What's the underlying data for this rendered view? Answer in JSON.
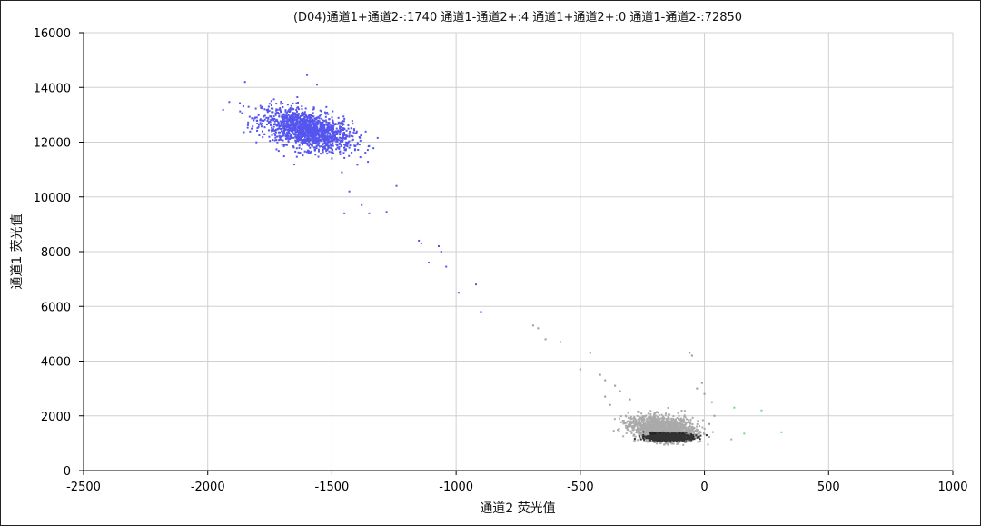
{
  "chart_data": {
    "type": "scatter",
    "title": "(D04)通道1+通道2-:1740   通道1-通道2+:4   通道1+通道2+:0   通道1-通道2-:72850",
    "xlabel": "通道2 荧光值",
    "ylabel": "通道1 荧光值",
    "xlim": [
      -2500,
      1000
    ],
    "ylim": [
      0,
      16000
    ],
    "xticks": [
      -2500,
      -2000,
      -1500,
      -1000,
      -500,
      0,
      500,
      1000
    ],
    "yticks": [
      0,
      2000,
      4000,
      6000,
      8000,
      10000,
      12000,
      14000,
      16000
    ],
    "grid": true,
    "legend": "none",
    "series": [
      {
        "label": "通道1+通道2-",
        "count": 1740,
        "color": "#5555ee",
        "cluster": {
          "x_center": -1600,
          "y_center": 12450,
          "x_sd": 90,
          "y_sd": 400
        },
        "sparse_points": [
          [
            -1460,
            10900
          ],
          [
            -1430,
            10200
          ],
          [
            -1380,
            9700
          ],
          [
            -1350,
            9400
          ],
          [
            -1280,
            9450
          ],
          [
            -1240,
            10400
          ],
          [
            -1450,
            9400
          ],
          [
            -1150,
            8400
          ],
          [
            -1140,
            8300
          ],
          [
            -1110,
            7600
          ],
          [
            -1070,
            8200
          ],
          [
            -1060,
            8000
          ],
          [
            -1040,
            7450
          ],
          [
            -990,
            6500
          ],
          [
            -920,
            6800
          ],
          [
            -900,
            5800
          ],
          [
            -1850,
            14200
          ],
          [
            -1600,
            14450
          ],
          [
            -1560,
            14100
          ]
        ]
      },
      {
        "label": "通道1-通道2+",
        "count": 4,
        "color": "#66dd88",
        "points": [
          [
            120,
            2300
          ],
          [
            230,
            2200
          ],
          [
            160,
            1350
          ],
          [
            310,
            1400
          ]
        ]
      },
      {
        "label": "通道1+通道2+",
        "count": 0,
        "color": "#ee8800",
        "points": []
      },
      {
        "label": "通道1-通道2-",
        "count": 72850,
        "color": "#999999",
        "cluster": {
          "x_center": -170,
          "y_center": 1550,
          "x_sd": 65,
          "y_sd": 250
        },
        "sparse_points": [
          [
            -690,
            5300
          ],
          [
            -670,
            5200
          ],
          [
            -640,
            4800
          ],
          [
            -580,
            4700
          ],
          [
            -500,
            3700
          ],
          [
            -460,
            4300
          ],
          [
            -420,
            3500
          ],
          [
            -400,
            3300
          ],
          [
            -360,
            3100
          ],
          [
            -340,
            2900
          ],
          [
            -60,
            4300
          ],
          [
            -50,
            4200
          ],
          [
            -10,
            3200
          ],
          [
            0,
            2800
          ],
          [
            30,
            2500
          ],
          [
            40,
            2000
          ],
          [
            20,
            1700
          ],
          [
            -30,
            3000
          ],
          [
            -400,
            2700
          ],
          [
            -380,
            2400
          ],
          [
            -300,
            2600
          ]
        ]
      }
    ]
  }
}
